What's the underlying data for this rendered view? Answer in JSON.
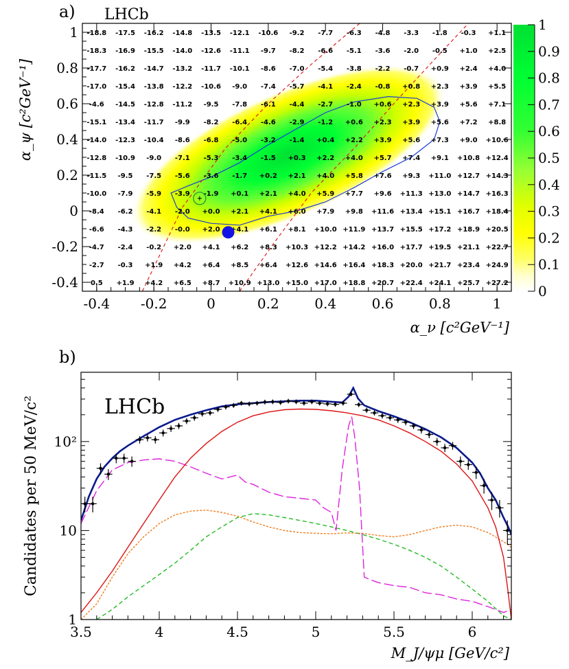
{
  "chart_data": [
    {
      "panel_label": "a)",
      "type": "heatmap",
      "title": "LHCb",
      "xlabel": "α_ν [c²GeV⁻¹]",
      "ylabel": "α_ψ [c²GeV⁻¹]",
      "xlim": [
        -0.45,
        1.05
      ],
      "ylim": [
        -0.45,
        1.05
      ],
      "x_ticks": [
        "-0.4",
        "-0.2",
        "0",
        "0.2",
        "0.4",
        "0.6",
        "0.8",
        "1"
      ],
      "y_ticks": [
        "-0.4",
        "-0.2",
        "0",
        "0.2",
        "0.4",
        "0.6",
        "0.8",
        "1"
      ],
      "colorbar_ticks": [
        "0",
        "0.1",
        "0.2",
        "0.3",
        "0.4",
        "0.5",
        "0.6",
        "0.7",
        "0.8",
        "0.9",
        "1"
      ],
      "colorbar_colors": [
        "#ffffff",
        "#ffff66",
        "#ffff00",
        "#ccff00",
        "#66ff33",
        "#00ff33",
        "#00e033"
      ],
      "cell_x_centers": [
        -0.4,
        -0.3,
        -0.2,
        -0.1,
        0.0,
        0.1,
        0.2,
        0.3,
        0.4,
        0.5,
        0.6,
        0.7,
        0.8,
        0.9,
        1.0
      ],
      "cell_y_centers": [
        1.0,
        0.9,
        0.8,
        0.7,
        0.6,
        0.5,
        0.4,
        0.3,
        0.2,
        0.1,
        0.0,
        -0.1,
        -0.2,
        -0.3,
        -0.4
      ],
      "cell_values": [
        [
          "-18.8",
          "-17.5",
          "-16.2",
          "-14.8",
          "-13.5",
          "-12.1",
          "-10.6",
          "-9.2",
          "-7.7",
          "-6.3",
          "-4.8",
          "-3.3",
          "-1.8",
          "-0.3",
          "+1.1"
        ],
        [
          "-18.3",
          "-16.9",
          "-15.5",
          "-14.0",
          "-12.6",
          "-11.1",
          "-9.7",
          "-8.2",
          "-6.6",
          "-5.1",
          "-3.6",
          "-2.0",
          "-0.5",
          "+1.0",
          "+2.5"
        ],
        [
          "-17.7",
          "-16.2",
          "-14.7",
          "-13.2",
          "-11.7",
          "-10.1",
          "-8.6",
          "-7.0",
          "-5.4",
          "-3.8",
          "-2.2",
          "-0.7",
          "+0.9",
          "+2.4",
          "+4.0"
        ],
        [
          "-17.0",
          "-15.4",
          "-13.8",
          "-12.2",
          "-10.6",
          "-9.0",
          "-7.4",
          "-5.7",
          "-4.1",
          "-2.4",
          "-0.8",
          "+0.8",
          "+2.3",
          "+3.9",
          "+5.5"
        ],
        [
          "-4.6",
          "-14.5",
          "-12.8",
          "-11.2",
          "-9.5",
          "-7.8",
          "-6.1",
          "-4.4",
          "-2.7",
          "-1.0",
          "+0.6",
          "+2.3",
          "+3.9",
          "+5.6",
          "+7.1"
        ],
        [
          "-15.1",
          "-13.4",
          "-11.7",
          "-9.9",
          "-8.2",
          "-6.4",
          "-4.6",
          "-2.9",
          "-1.2",
          "+0.6",
          "+2.3",
          "+3.9",
          "+5.6",
          "+7.2",
          "+8.8"
        ],
        [
          "-14.0",
          "-12.3",
          "-10.4",
          "-8.6",
          "-6.8",
          "-5.0",
          "-3.2",
          "-1.4",
          "+0.4",
          "+2.2",
          "+3.9",
          "+5.6",
          "+7.3",
          "+9.0",
          "+10.6"
        ],
        [
          "-12.8",
          "-10.9",
          "-9.0",
          "-7.1",
          "-5.3",
          "-3.4",
          "-1.5",
          "+0.3",
          "+2.2",
          "+4.0",
          "+5.7",
          "+7.4",
          "+9.1",
          "+10.8",
          "+12.4"
        ],
        [
          "-11.5",
          "-9.5",
          "-7.5",
          "-5.6",
          "-3.6",
          "-1.7",
          "+0.2",
          "+2.1",
          "+4.0",
          "+5.8",
          "+7.6",
          "+9.3",
          "+11.0",
          "+12.7",
          "+14.3"
        ],
        [
          "-10.0",
          "-7.9",
          "-5.9",
          "-3.9",
          "-1.9",
          "+0.1",
          "+2.1",
          "+4.0",
          "+5.9",
          "+7.7",
          "+9.6",
          "+11.3",
          "+13.0",
          "+14.7",
          "+16.3"
        ],
        [
          "-8.4",
          "-6.2",
          "-4.1",
          "-2.0",
          "+0.0",
          "+2.1",
          "+4.1",
          "+6.0",
          "+7.9",
          "+9.8",
          "+11.6",
          "+13.4",
          "+15.1",
          "+16.7",
          "+18.4"
        ],
        [
          "-6.6",
          "-4.3",
          "-2.2",
          "-0.0",
          "+2.0",
          "+4.1",
          "+6.1",
          "+8.1",
          "+10.0",
          "+11.9",
          "+13.7",
          "+15.5",
          "+17.2",
          "+18.9",
          "+20.5"
        ],
        [
          "-4.7",
          "-2.4",
          "-0.2",
          "+2.0",
          "+4.1",
          "+6.2",
          "+8.3",
          "+10.3",
          "+12.2",
          "+14.2",
          "+16.0",
          "+17.7",
          "+19.5",
          "+21.1",
          "+22.7"
        ],
        [
          "-2.7",
          "-0.3",
          "+1.9",
          "+4.2",
          "+6.4",
          "+8.5",
          "+6.4",
          "+12.6",
          "+14.6",
          "+16.4",
          "+18.3",
          "+20.0",
          "+21.7",
          "+23.4",
          "+24.9"
        ],
        [
          "0.5",
          "+1.9",
          "+4.2",
          "+6.5",
          "+8.7",
          "+10.9",
          "+13.0",
          "+15.0",
          "+17.0",
          "+18.8",
          "+20.7",
          "+22.4",
          "+24.1",
          "+25.7",
          "+27.2"
        ]
      ],
      "best_fit_point": [
        -0.04,
        0.07
      ],
      "marker_point": [
        0.06,
        -0.12
      ],
      "contour_polygon": [
        [
          -0.14,
          0.1
        ],
        [
          -0.12,
          0.02
        ],
        [
          -0.08,
          -0.04
        ],
        [
          0.0,
          -0.07
        ],
        [
          0.1,
          -0.08
        ],
        [
          0.2,
          -0.03
        ],
        [
          0.3,
          0.0
        ],
        [
          0.4,
          0.05
        ],
        [
          0.5,
          0.13
        ],
        [
          0.6,
          0.22
        ],
        [
          0.7,
          0.3
        ],
        [
          0.78,
          0.4
        ],
        [
          0.8,
          0.5
        ],
        [
          0.78,
          0.58
        ],
        [
          0.72,
          0.63
        ],
        [
          0.62,
          0.64
        ],
        [
          0.5,
          0.61
        ],
        [
          0.4,
          0.55
        ],
        [
          0.3,
          0.46
        ],
        [
          0.2,
          0.37
        ],
        [
          0.1,
          0.27
        ],
        [
          0.0,
          0.19
        ],
        [
          -0.08,
          0.14
        ]
      ],
      "dashed_line_left": [
        [
          -0.24,
          -0.45
        ],
        [
          -0.1,
          0.02
        ],
        [
          0.05,
          0.35
        ],
        [
          0.2,
          0.6
        ],
        [
          0.35,
          0.82
        ],
        [
          0.52,
          1.05
        ]
      ],
      "dashed_line_right": [
        [
          0.1,
          -0.45
        ],
        [
          0.22,
          -0.18
        ],
        [
          0.35,
          0.1
        ],
        [
          0.5,
          0.35
        ],
        [
          0.65,
          0.62
        ],
        [
          0.8,
          0.88
        ],
        [
          0.9,
          1.05
        ]
      ]
    },
    {
      "panel_label": "b)",
      "type": "line",
      "title": "LHCb",
      "xlabel": "M_J/ψμ [GeV/c²]",
      "ylabel": "Candidates per 50 MeV/c²",
      "xlim": [
        3.5,
        6.25
      ],
      "ylim": [
        1,
        600
      ],
      "y_scale": "log",
      "x_ticks": [
        "3.5",
        "4",
        "4.5",
        "5",
        "5.5",
        "6"
      ],
      "y_ticks": [
        "1",
        "10",
        "10²"
      ],
      "series": [
        {
          "color": "#0a1a8c",
          "style": "solid-thick",
          "x": [
            3.5,
            3.55,
            3.6,
            3.65,
            3.7,
            3.75,
            3.8,
            3.9,
            4.0,
            4.1,
            4.2,
            4.3,
            4.4,
            4.5,
            4.6,
            4.7,
            4.8,
            4.9,
            5.0,
            5.1,
            5.17,
            5.21,
            5.24,
            5.27,
            5.31,
            5.4,
            5.5,
            5.6,
            5.7,
            5.8,
            5.9,
            6.0,
            6.05,
            6.1,
            6.15,
            6.2,
            6.23,
            6.25
          ],
          "y": [
            13,
            24,
            38,
            52,
            65,
            78,
            90,
            115,
            145,
            175,
            200,
            225,
            248,
            262,
            270,
            278,
            283,
            288,
            288,
            280,
            275,
            320,
            400,
            305,
            255,
            220,
            192,
            165,
            138,
            112,
            85,
            58,
            44,
            30,
            22,
            14,
            11,
            9
          ]
        },
        {
          "color": "#dd1111",
          "style": "solid",
          "x": [
            3.5,
            3.6,
            3.7,
            3.8,
            3.9,
            4.0,
            4.1,
            4.2,
            4.3,
            4.4,
            4.5,
            4.6,
            4.7,
            4.8,
            4.9,
            5.0,
            5.1,
            5.2,
            5.3,
            5.4,
            5.5,
            5.6,
            5.7,
            5.8,
            5.9,
            6.0,
            6.1,
            6.15,
            6.2,
            6.23,
            6.25
          ],
          "y": [
            1.2,
            2.0,
            3.5,
            6.5,
            12,
            22,
            40,
            65,
            95,
            130,
            165,
            195,
            215,
            228,
            232,
            230,
            222,
            210,
            195,
            175,
            150,
            125,
            100,
            78,
            56,
            36,
            18,
            11,
            5,
            2,
            1
          ]
        },
        {
          "color": "#dd22dd",
          "style": "long-dash",
          "x": [
            3.5,
            3.6,
            3.7,
            3.8,
            3.9,
            4.0,
            4.1,
            4.2,
            4.3,
            4.4,
            4.5,
            4.55,
            4.6,
            4.7,
            4.8,
            4.9,
            5.0,
            5.05,
            5.1,
            5.13,
            5.17,
            5.21,
            5.23,
            5.25,
            5.28,
            5.31,
            5.35,
            5.4,
            5.5,
            5.6,
            5.7,
            5.8,
            5.9,
            6.0,
            6.1,
            6.2,
            6.25
          ],
          "y": [
            12,
            28,
            48,
            58,
            62,
            64,
            60,
            52,
            44,
            38,
            42,
            35,
            33,
            27,
            24,
            23,
            22,
            18,
            16,
            10,
            50,
            150,
            190,
            110,
            30,
            3,
            2.8,
            2.6,
            2.4,
            2.3,
            2.0,
            1.9,
            1.7,
            1.6,
            1.4,
            1.2,
            1.3
          ]
        },
        {
          "color": "#f07d1e",
          "style": "dotted",
          "x": [
            3.5,
            3.6,
            3.7,
            3.8,
            3.9,
            4.0,
            4.1,
            4.2,
            4.3,
            4.4,
            4.5,
            4.6,
            4.7,
            4.8,
            4.9,
            5.0,
            5.1,
            5.2,
            5.3,
            5.4,
            5.5,
            5.6,
            5.7,
            5.8,
            5.9,
            6.0,
            6.1,
            6.2,
            6.25
          ],
          "y": [
            1.0,
            1.5,
            3,
            5.5,
            8.5,
            12,
            15,
            16.5,
            17,
            16,
            14.5,
            12.5,
            11,
            10,
            9.5,
            9.3,
            9.2,
            9.4,
            9.3,
            8.8,
            8.5,
            9,
            10,
            11,
            11.5,
            11,
            9.5,
            7.5,
            6.5
          ]
        },
        {
          "color": "#22bb22",
          "style": "dashed",
          "x": [
            3.6,
            3.7,
            3.8,
            3.9,
            4.0,
            4.1,
            4.2,
            4.3,
            4.4,
            4.5,
            4.6,
            4.7,
            4.8,
            4.9,
            5.0,
            5.1,
            5.2,
            5.3,
            5.4,
            5.5,
            5.6,
            5.7,
            5.8,
            5.9,
            6.0,
            6.1,
            6.2,
            6.25
          ],
          "y": [
            1.0,
            1.3,
            1.8,
            2.4,
            3.2,
            4.3,
            6,
            8.5,
            11,
            14,
            15.5,
            15,
            14,
            13,
            12,
            11,
            10,
            9,
            8,
            7,
            6,
            5,
            4,
            3,
            2.2,
            1.6,
            1.1,
            1.0
          ]
        }
      ],
      "data_points": {
        "x": [
          3.525,
          3.575,
          3.625,
          3.675,
          3.725,
          3.775,
          3.825,
          3.875,
          3.925,
          3.975,
          4.025,
          4.075,
          4.125,
          4.175,
          4.225,
          4.275,
          4.325,
          4.375,
          4.425,
          4.475,
          4.525,
          4.575,
          4.625,
          4.675,
          4.725,
          4.775,
          4.825,
          4.875,
          4.925,
          4.975,
          5.025,
          5.075,
          5.125,
          5.175,
          5.225,
          5.275,
          5.325,
          5.375,
          5.425,
          5.475,
          5.525,
          5.575,
          5.625,
          5.675,
          5.725,
          5.775,
          5.825,
          5.875,
          5.925,
          5.975,
          6.025,
          6.075,
          6.125,
          6.175,
          6.225
        ],
        "y": [
          20,
          20,
          50,
          43,
          65,
          65,
          60,
          105,
          110,
          105,
          125,
          140,
          150,
          170,
          185,
          205,
          210,
          230,
          245,
          255,
          270,
          265,
          270,
          278,
          280,
          275,
          285,
          280,
          270,
          280,
          270,
          265,
          262,
          270,
          340,
          260,
          225,
          210,
          195,
          185,
          175,
          165,
          150,
          135,
          120,
          100,
          85,
          90,
          60,
          55,
          45,
          32,
          22,
          18,
          10
        ],
        "yerr": [
          4,
          4,
          7,
          6,
          8,
          8,
          8,
          10,
          10,
          10,
          11,
          12,
          12,
          13,
          14,
          14,
          14,
          15,
          16,
          16,
          16,
          16,
          16,
          17,
          17,
          17,
          17,
          17,
          16,
          17,
          16,
          16,
          16,
          16,
          18,
          16,
          15,
          14,
          14,
          14,
          13,
          13,
          12,
          12,
          11,
          10,
          9,
          9,
          8,
          7,
          7,
          6,
          5,
          4,
          3
        ]
      }
    }
  ]
}
